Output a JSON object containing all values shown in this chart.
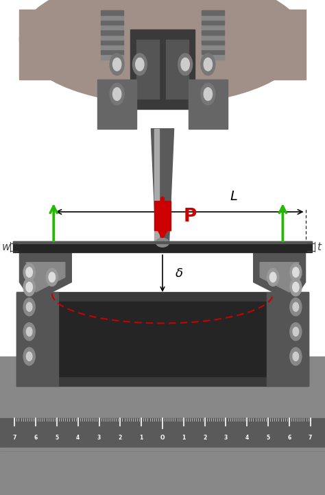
{
  "fig_width": 4.74,
  "fig_height": 7.22,
  "dpi": 100,
  "annotation_color_P": "#CC0000",
  "annotation_color_green": "#22BB00",
  "annotation_color_L": "#000000",
  "annotation_color_delta": "#000000",
  "annotation_color_dashed": "#CC0000",
  "annotation_color_w": "#444444",
  "annotation_color_t": "#444444",
  "P_label": "P",
  "L_label": "L",
  "delta_label": "δ",
  "w_label": "w",
  "t_label": "t",
  "bg_top": "#c8c0b8",
  "bg_white": "#ffffff",
  "machine_dark": "#4a4a4a",
  "machine_med": "#888888",
  "machine_light": "#bbbbbb",
  "beam_color": "#2a2a2a",
  "fixture_color": "#555555",
  "frame_color": "#3a3a3a",
  "ruler_color": "#6a6a6a"
}
